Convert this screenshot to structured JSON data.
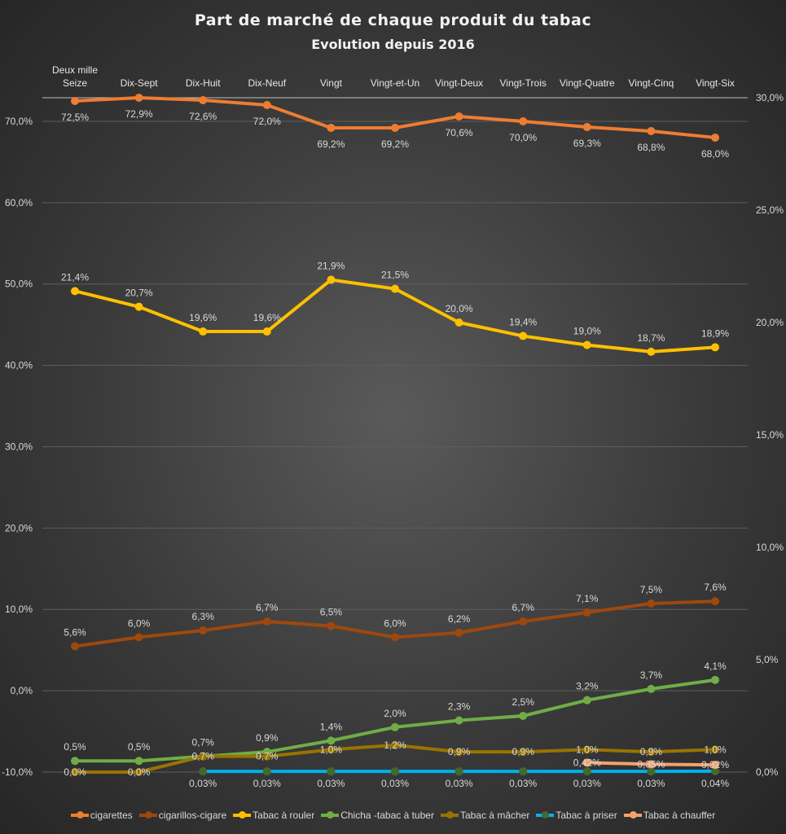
{
  "chart_data": {
    "type": "line",
    "title": "Part de marché de chaque produit du tabac",
    "subtitle": "Evolution depuis 2016",
    "categories": [
      [
        "Deux mille",
        "Seize"
      ],
      [
        "Dix-Sept"
      ],
      [
        "Dix-Huit"
      ],
      [
        "Dix-Neuf"
      ],
      [
        "Vingt"
      ],
      [
        "Vingt-et-Un"
      ],
      [
        "Vingt-Deux"
      ],
      [
        "Vingt-Trois"
      ],
      [
        "Vingt-Quatre"
      ],
      [
        "Vingt-Cinq"
      ],
      [
        "Vingt-Six"
      ]
    ],
    "y_left": {
      "ylim": [
        -10,
        72.9
      ],
      "ticks": [
        "-10,0%",
        "0,0%",
        "10,0%",
        "20,0%",
        "30,0%",
        "40,0%",
        "50,0%",
        "60,0%",
        "70,0%"
      ],
      "tick_values": [
        -10,
        0,
        10,
        20,
        30,
        40,
        50,
        60,
        70
      ]
    },
    "y_right": {
      "ylim": [
        0,
        30
      ],
      "ticks": [
        "0,0%",
        "5,0%",
        "10,0%",
        "15,0%",
        "20,0%",
        "25,0%",
        "30,0%"
      ],
      "tick_values": [
        0,
        5,
        10,
        15,
        20,
        25,
        30
      ]
    },
    "grid": true,
    "legend_position": "bottom",
    "series": [
      {
        "name": "cigarettes",
        "color": "#ED7D31",
        "axis": "left",
        "label_pos": "below",
        "marker_color": "#ED7D31",
        "values": [
          72.5,
          72.9,
          72.6,
          72.0,
          69.2,
          69.2,
          70.6,
          70.0,
          69.3,
          68.8,
          68.0
        ],
        "labels": [
          "72,5%",
          "72,9%",
          "72,6%",
          "72,0%",
          "69,2%",
          "69,2%",
          "70,6%",
          "70,0%",
          "69,3%",
          "68,8%",
          "68,0%"
        ]
      },
      {
        "name": "cigarillos-cigare",
        "color": "#9E480E",
        "axis": "right",
        "label_pos": "above",
        "marker_color": "#9E480E",
        "values": [
          5.6,
          6.0,
          6.3,
          6.7,
          6.5,
          6.0,
          6.2,
          6.7,
          7.1,
          7.5,
          7.6
        ],
        "labels": [
          "5,6%",
          "6,0%",
          "6,3%",
          "6,7%",
          "6,5%",
          "6,0%",
          "6,2%",
          "6,7%",
          "7,1%",
          "7,5%",
          "7,6%"
        ]
      },
      {
        "name": "Tabac à rouler",
        "color": "#FFC000",
        "axis": "right",
        "label_pos": "above",
        "marker_color": "#FFC000",
        "values": [
          21.4,
          20.7,
          19.6,
          19.6,
          21.9,
          21.5,
          20.0,
          19.4,
          19.0,
          18.7,
          18.9
        ],
        "labels": [
          "21,4%",
          "20,7%",
          "19,6%",
          "19,6%",
          "21,9%",
          "21,5%",
          "20,0%",
          "19,4%",
          "19,0%",
          "18,7%",
          "18,9%"
        ]
      },
      {
        "name": "Chicha -tabac à tuber",
        "color": "#70AD47",
        "axis": "right",
        "label_pos": "above",
        "marker_color": "#70AD47",
        "values": [
          0.5,
          0.5,
          0.7,
          0.9,
          1.4,
          2.0,
          2.3,
          2.5,
          3.2,
          3.7,
          4.1
        ],
        "labels": [
          "0,5%",
          "0,5%",
          "0,7%",
          "0,9%",
          "1,4%",
          "2,0%",
          "2,3%",
          "2,5%",
          "3,2%",
          "3,7%",
          "4,1%"
        ]
      },
      {
        "name": "Tabac à mâcher",
        "color": "#997300",
        "axis": "right",
        "label_pos": "center",
        "marker_color": "#997300",
        "values": [
          0.0,
          0.0,
          0.7,
          0.7,
          1.0,
          1.2,
          0.9,
          0.9,
          1.0,
          0.9,
          1.0
        ],
        "labels": [
          "0,0%",
          "0,0%",
          "0,7%",
          "0,7%",
          "1,0%",
          "1,2%",
          "0,9%",
          "0,9%",
          "1,0%",
          "0,9%",
          "1,0%"
        ]
      },
      {
        "name": "Tabac à priser",
        "color": "#00B0F0",
        "axis": "right",
        "label_pos": "center",
        "marker_color": "#43682B",
        "values": [
          null,
          null,
          0.03,
          0.03,
          0.03,
          0.03,
          0.03,
          0.03,
          0.03,
          0.03,
          0.04
        ],
        "labels": [
          "",
          "",
          "0,03%",
          "0,03%",
          "0,03%",
          "0,03%",
          "0,03%",
          "0,03%",
          "0,03%",
          "0,03%",
          "0,04%"
        ]
      },
      {
        "name": "Tabac à chauffer",
        "color": "#F4A16C",
        "axis": "right",
        "label_pos": "center",
        "marker_color": "#F4A16C",
        "values": [
          null,
          null,
          null,
          null,
          null,
          null,
          null,
          null,
          0.42,
          0.35,
          0.32
        ],
        "labels": [
          "",
          "",
          "",
          "",
          "",
          "",
          "",
          "",
          "0,42%",
          "0,35%",
          "0,32%"
        ]
      }
    ]
  }
}
